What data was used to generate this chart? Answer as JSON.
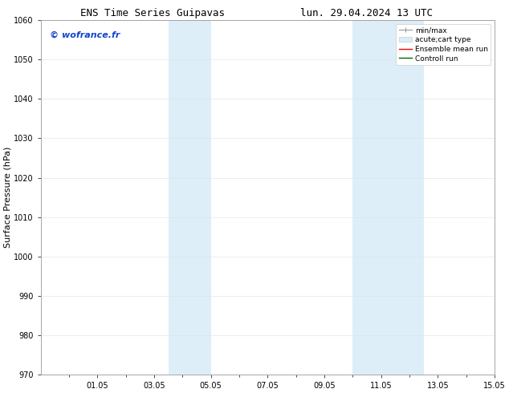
{
  "title_left": "ENS Time Series Guipavas",
  "title_right": "lun. 29.04.2024 13 UTC",
  "ylabel": "Surface Pressure (hPa)",
  "ylim": [
    970,
    1060
  ],
  "yticks": [
    970,
    980,
    990,
    1000,
    1010,
    1020,
    1030,
    1040,
    1050,
    1060
  ],
  "xlim": [
    0,
    16
  ],
  "xtick_labels": [
    "01.05",
    "03.05",
    "05.05",
    "07.05",
    "09.05",
    "11.05",
    "13.05",
    "15.05"
  ],
  "xtick_positions": [
    2,
    4,
    6,
    8,
    10,
    12,
    14,
    16
  ],
  "minor_xtick_positions": [
    1,
    3,
    5,
    7,
    9,
    11,
    13,
    15
  ],
  "shaded_bands": [
    {
      "xstart": 4.5,
      "xend": 6.0,
      "color": "#ddeef8"
    },
    {
      "xstart": 11.0,
      "xend": 13.5,
      "color": "#ddeef8"
    }
  ],
  "watermark": "© wofrance.fr",
  "watermark_color": "#1144cc",
  "background_color": "#ffffff",
  "plot_bg_color": "#ffffff",
  "legend_items": [
    {
      "label": "min/max",
      "color": "#aaaaaa"
    },
    {
      "label": "acute;cart type",
      "color": "#d8eef8"
    },
    {
      "label": "Ensemble mean run",
      "color": "#ff0000"
    },
    {
      "label": "Controll run",
      "color": "#006600"
    }
  ],
  "title_fontsize": 9,
  "ylabel_fontsize": 8,
  "tick_fontsize": 7,
  "watermark_fontsize": 8,
  "legend_fontsize": 6.5
}
